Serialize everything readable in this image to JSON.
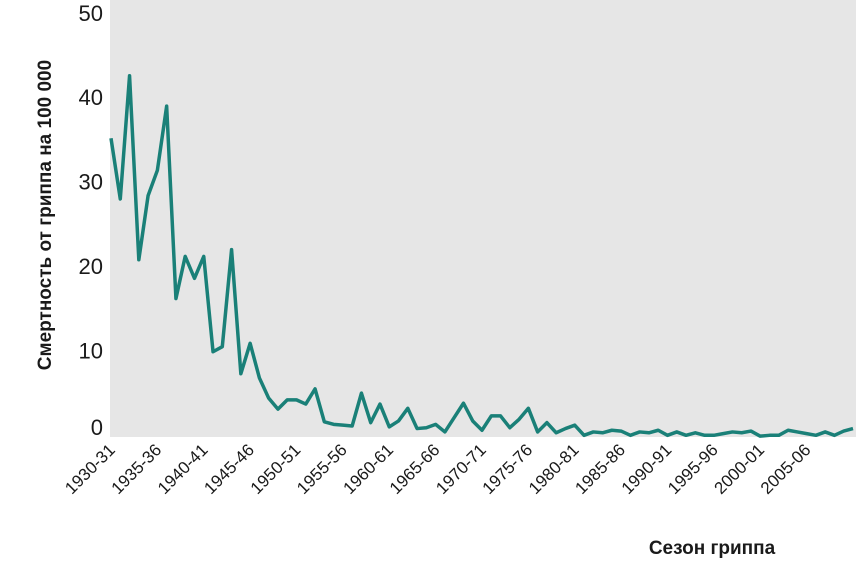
{
  "chart_data": {
    "type": "line",
    "y_label": "Смертность от гриппа на 100 000",
    "x_label": "Сезон гриппа",
    "categories": [
      "1930-31",
      null,
      null,
      null,
      null,
      "1935-36",
      null,
      null,
      null,
      null,
      "1940-41",
      null,
      null,
      null,
      null,
      "1945-46",
      null,
      null,
      null,
      null,
      "1950-51",
      null,
      null,
      null,
      null,
      "1955-56",
      null,
      null,
      null,
      null,
      "1960-61",
      null,
      null,
      null,
      null,
      "1965-66",
      null,
      null,
      null,
      null,
      "1970-71",
      null,
      null,
      null,
      null,
      "1975-76",
      null,
      null,
      null,
      null,
      "1980-81",
      null,
      null,
      null,
      null,
      "1985-86",
      null,
      null,
      null,
      null,
      "1990-91",
      null,
      null,
      null,
      null,
      "1995-96",
      null,
      null,
      null,
      null,
      "2000-01",
      null,
      null,
      null,
      null,
      "2005-06",
      null,
      null,
      null,
      null,
      null
    ],
    "series": [
      {
        "color": "#1a8078",
        "values": [
          35.4,
          28.2,
          42.8,
          21,
          28.6,
          31.6,
          39.2,
          16.4,
          21.4,
          18.8,
          21.4,
          10.1,
          10.7,
          22.2,
          7.5,
          11.1,
          7,
          4.6,
          3.3,
          4.4,
          4.4,
          3.9,
          5.7,
          1.8,
          1.5,
          1.4,
          1.3,
          5.2,
          1.7,
          3.9,
          1.2,
          1.9,
          3.4,
          1,
          1.1,
          1.5,
          0.6,
          2.3,
          4,
          1.9,
          0.8,
          2.5,
          2.5,
          1.1,
          2.1,
          3.4,
          0.6,
          1.7,
          0.5,
          1,
          1.4,
          0.2,
          0.6,
          0.5,
          0.8,
          0.7,
          0.2,
          0.6,
          0.5,
          0.8,
          0.2,
          0.6,
          0.2,
          0.5,
          0.2,
          0.2,
          0.4,
          0.6,
          0.5,
          0.7,
          0.1,
          0.2,
          0.2,
          0.8,
          0.6,
          0.4,
          0.2,
          0.6,
          0.2,
          0.7,
          1
        ]
      }
    ],
    "ylim": [
      0,
      50
    ],
    "yticks": [
      0,
      10,
      20,
      30,
      40,
      50
    ],
    "grid": false
  }
}
